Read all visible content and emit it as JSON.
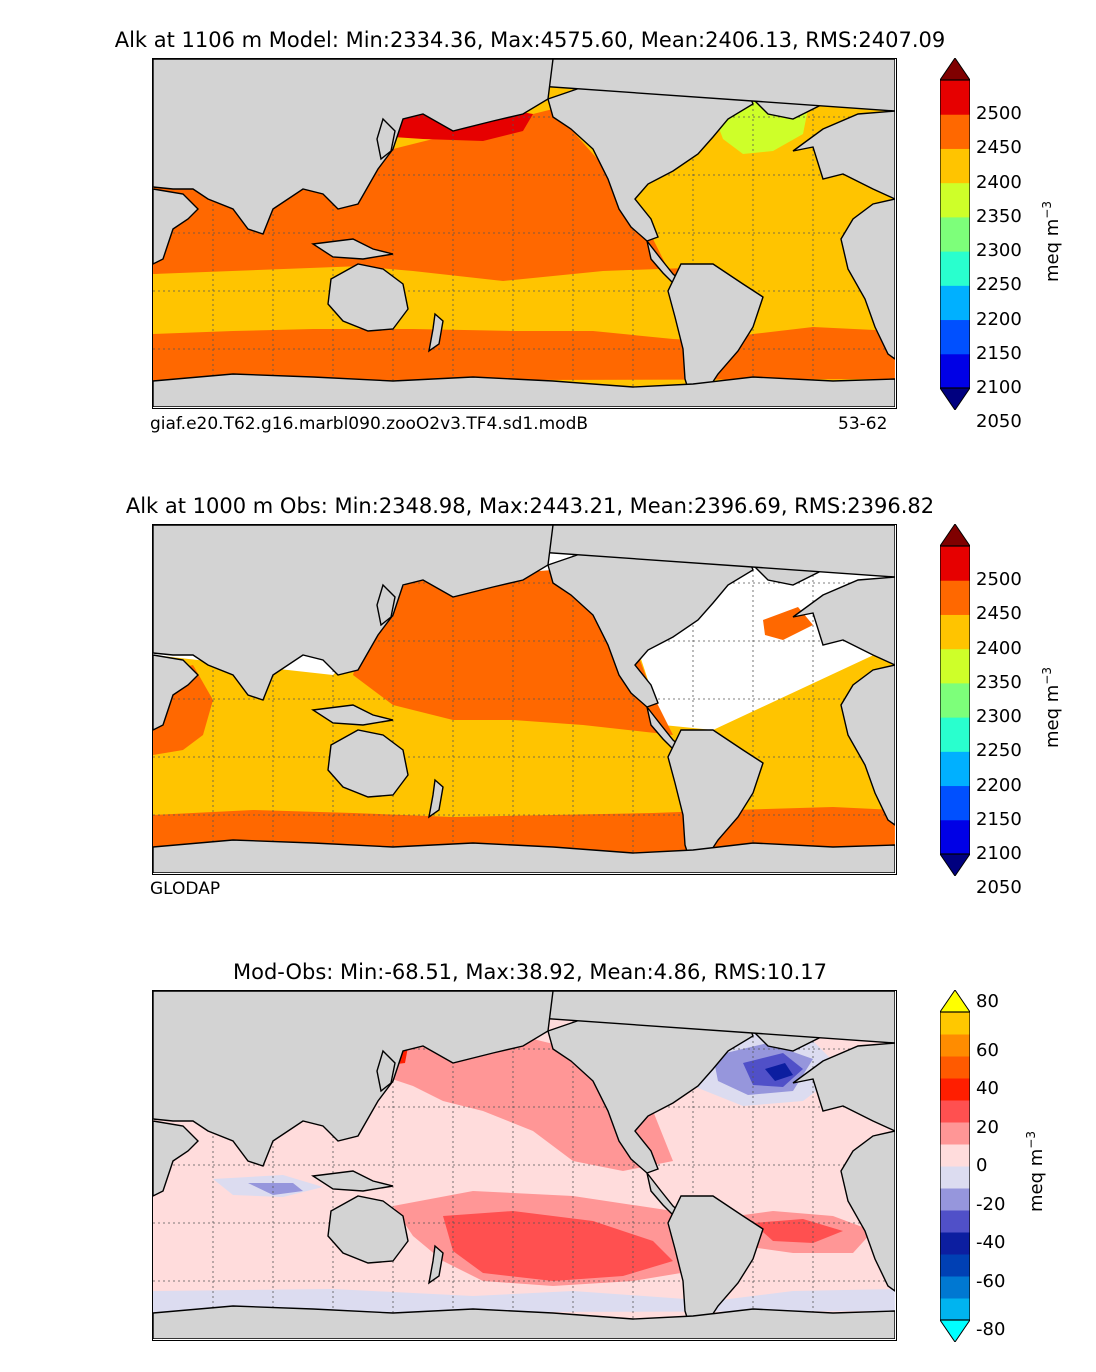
{
  "panels": [
    {
      "id": "model",
      "title": "Alk at 1106 m Model: Min:2334.36, Max:4575.60, Mean:2406.13, RMS:2407.09",
      "caption_left": "giaf.e20.T62.g16.marbl090.zooO2v3.TF4.sd1.modB",
      "caption_right": "53-62",
      "colorbar": {
        "ticks": [
          "2500",
          "2450",
          "2400",
          "2350",
          "2300",
          "2250",
          "2200",
          "2150",
          "2100",
          "2050"
        ],
        "unit_base": "meq m",
        "unit_exp": "−3",
        "colors": [
          "#00007f",
          "#0000e6",
          "#0050ff",
          "#00b0ff",
          "#29ffce",
          "#7dff7a",
          "#ceff29",
          "#ffc400",
          "#ff6800",
          "#e60000",
          "#7f0000"
        ]
      },
      "colors": {
        "arctic": "#ceff29",
        "pacific": "#ff6800",
        "nw_pacific": "#e60000",
        "atlantic": "#ffc400",
        "south": "#ffc400",
        "southern_ring": "#ff6800",
        "north_atlantic": "#ceff29",
        "med": "#7f0000"
      }
    },
    {
      "id": "obs",
      "title": "Alk at 1000 m Obs: Min:2348.98, Max:2443.21, Mean:2396.69, RMS:2396.82",
      "caption_left": "GLODAP",
      "caption_right": "",
      "colorbar": {
        "ticks": [
          "2500",
          "2450",
          "2400",
          "2350",
          "2300",
          "2250",
          "2200",
          "2150",
          "2100",
          "2050"
        ],
        "unit_base": "meq m",
        "unit_exp": "−3",
        "colors": [
          "#00007f",
          "#0000e6",
          "#0050ff",
          "#00b0ff",
          "#29ffce",
          "#7dff7a",
          "#ceff29",
          "#ffc400",
          "#ff6800",
          "#e60000",
          "#7f0000"
        ]
      },
      "colors": {
        "pacific": "#ff6800",
        "atlantic": "#ffc400",
        "south": "#ffc400",
        "southern_ring": "#ff6800",
        "indian_west": "#ff6800"
      }
    },
    {
      "id": "diff",
      "title": "Mod-Obs: Min:-68.51, Max:38.92, Mean:4.86, RMS:10.17",
      "caption_left": "",
      "caption_right": "",
      "colorbar": {
        "ticks": [
          "80",
          "60",
          "40",
          "20",
          "0",
          "-20",
          "-40",
          "-60",
          "-80"
        ],
        "unit_base": "meq m",
        "unit_exp": "−3",
        "colors": [
          "#00ffff",
          "#00b4f0",
          "#0078d2",
          "#0040b4",
          "#0c1ea0",
          "#5050c8",
          "#9696dc",
          "#dcdcf0",
          "#ffdcdc",
          "#ff9696",
          "#ff5050",
          "#ff1e00",
          "#ff5a00",
          "#ff8c00",
          "#ffc800",
          "#ffff00"
        ]
      },
      "colors": {
        "background": "#ffdcdc",
        "pos1": "#ff9696",
        "pos2": "#ff5050",
        "pos3": "#ff1e00",
        "neg1": "#dcdcf0",
        "neg2": "#9696dc",
        "neg3": "#5050c8",
        "neg4": "#0c1ea0"
      }
    }
  ]
}
